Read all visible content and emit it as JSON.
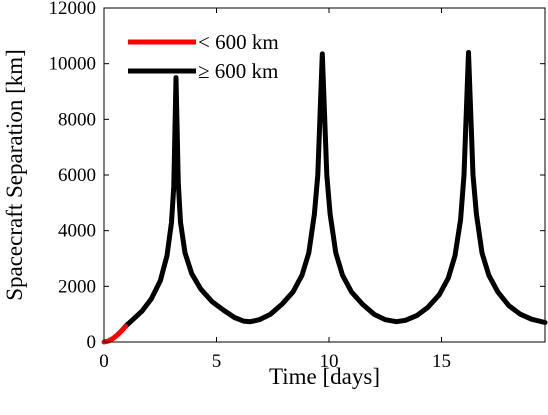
{
  "chart_data": {
    "type": "line",
    "title": "",
    "xlabel": "Time [days]",
    "ylabel": "Spacecraft Separation [km]",
    "xlim": [
      0,
      19.6
    ],
    "ylim": [
      0,
      12000
    ],
    "xticks": [
      0,
      5,
      10,
      15
    ],
    "yticks": [
      0,
      2000,
      4000,
      6000,
      8000,
      10000,
      12000
    ],
    "grid": false,
    "legend_position": "top-left",
    "series": [
      {
        "name": "< 600 km",
        "color": "#ff0000",
        "points": [
          [
            0,
            0
          ],
          [
            0.2,
            40
          ],
          [
            0.4,
            130
          ],
          [
            0.6,
            260
          ],
          [
            0.8,
            420
          ],
          [
            0.95,
            560
          ]
        ]
      },
      {
        "name": "≥ 600 km",
        "color": "#000000",
        "points": [
          [
            0.95,
            560
          ],
          [
            1.3,
            820
          ],
          [
            1.7,
            1120
          ],
          [
            2.1,
            1550
          ],
          [
            2.5,
            2200
          ],
          [
            2.8,
            3100
          ],
          [
            3.0,
            4300
          ],
          [
            3.1,
            5600
          ],
          [
            3.2,
            9500
          ],
          [
            3.3,
            5700
          ],
          [
            3.4,
            4300
          ],
          [
            3.6,
            3200
          ],
          [
            3.9,
            2450
          ],
          [
            4.3,
            1900
          ],
          [
            4.8,
            1450
          ],
          [
            5.3,
            1150
          ],
          [
            5.8,
            880
          ],
          [
            6.2,
            750
          ],
          [
            6.5,
            730
          ],
          [
            6.9,
            800
          ],
          [
            7.4,
            1000
          ],
          [
            7.9,
            1350
          ],
          [
            8.4,
            1800
          ],
          [
            8.8,
            2400
          ],
          [
            9.1,
            3200
          ],
          [
            9.35,
            4600
          ],
          [
            9.5,
            6000
          ],
          [
            9.7,
            10350
          ],
          [
            9.9,
            6000
          ],
          [
            10.05,
            4600
          ],
          [
            10.3,
            3200
          ],
          [
            10.6,
            2400
          ],
          [
            11.0,
            1800
          ],
          [
            11.5,
            1350
          ],
          [
            12.0,
            1000
          ],
          [
            12.5,
            800
          ],
          [
            13.0,
            730
          ],
          [
            13.4,
            780
          ],
          [
            13.9,
            950
          ],
          [
            14.4,
            1250
          ],
          [
            14.9,
            1700
          ],
          [
            15.3,
            2300
          ],
          [
            15.6,
            3100
          ],
          [
            15.85,
            4400
          ],
          [
            16.0,
            6000
          ],
          [
            16.2,
            10400
          ],
          [
            16.4,
            6000
          ],
          [
            16.55,
            4600
          ],
          [
            16.8,
            3200
          ],
          [
            17.1,
            2400
          ],
          [
            17.5,
            1800
          ],
          [
            18.0,
            1300
          ],
          [
            18.5,
            1000
          ],
          [
            19.0,
            820
          ],
          [
            19.6,
            700
          ]
        ]
      }
    ]
  }
}
